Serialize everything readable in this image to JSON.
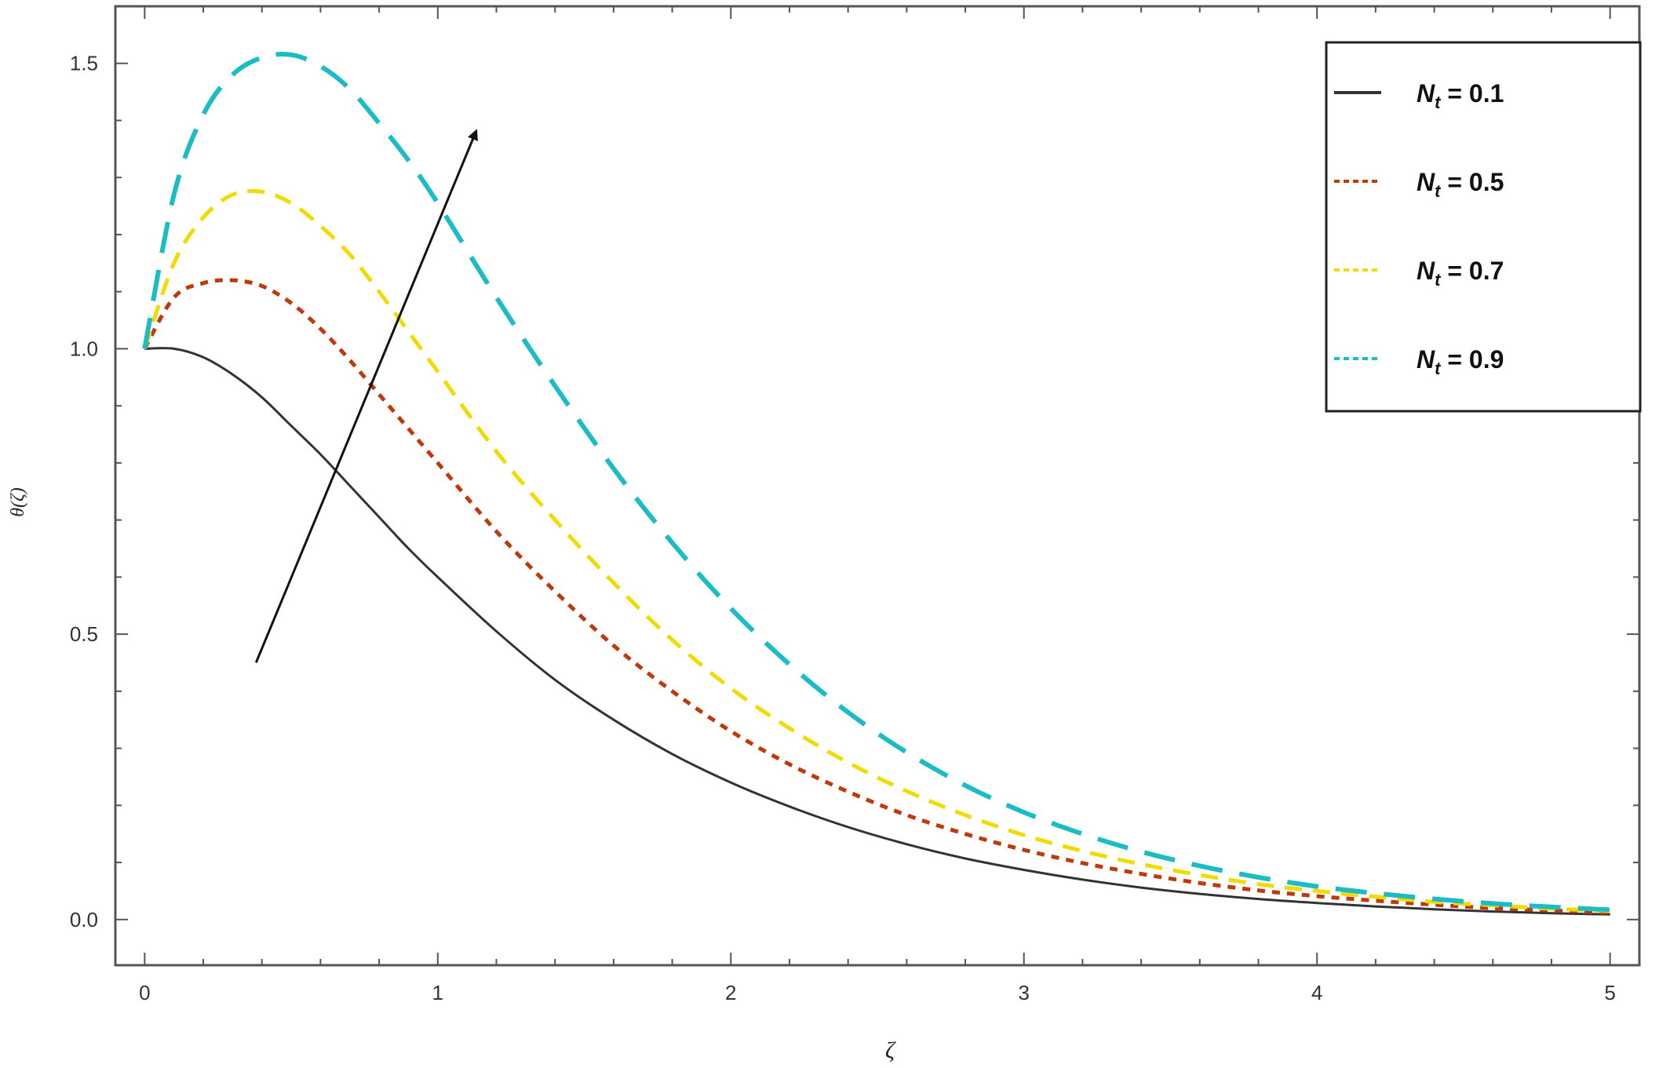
{
  "chart_data": {
    "type": "line",
    "xlabel": "ζ",
    "ylabel": "θ(ζ)",
    "xlim": [
      -0.1,
      5.1
    ],
    "ylim": [
      -0.08,
      1.6
    ],
    "x_ticks": [
      "0",
      "1",
      "2",
      "3",
      "4",
      "5"
    ],
    "x_tick_values": [
      0,
      1,
      2,
      3,
      4,
      5
    ],
    "y_ticks": [
      "0.0",
      "0.5",
      "1.0",
      "1.5"
    ],
    "y_tick_values": [
      0,
      0.5,
      1.0,
      1.5
    ],
    "legend_position": "top-right",
    "series": [
      {
        "name": "N_t = 0.1",
        "legend_var": "N",
        "legend_sub": "t",
        "legend_value": " = 0.1",
        "color": "#333333",
        "dash": "solid",
        "x": [
          0,
          0.1,
          0.2,
          0.3,
          0.4,
          0.5,
          0.6,
          0.7,
          0.8,
          0.9,
          1.0,
          1.2,
          1.4,
          1.6,
          1.8,
          2.0,
          2.2,
          2.4,
          2.6,
          2.8,
          3.0,
          3.2,
          3.4,
          3.6,
          3.8,
          4.0,
          4.2,
          4.4,
          4.6,
          4.8,
          5.0
        ],
        "y": [
          1.0,
          1.0,
          0.985,
          0.955,
          0.915,
          0.865,
          0.815,
          0.76,
          0.705,
          0.65,
          0.6,
          0.505,
          0.42,
          0.35,
          0.29,
          0.24,
          0.198,
          0.162,
          0.132,
          0.107,
          0.087,
          0.07,
          0.056,
          0.045,
          0.036,
          0.029,
          0.023,
          0.018,
          0.014,
          0.011,
          0.009
        ]
      },
      {
        "name": "N_t = 0.5",
        "legend_var": "N",
        "legend_sub": "t",
        "legend_value": " = 0.5",
        "color": "#c0390c",
        "dash": "short",
        "x": [
          0,
          0.1,
          0.2,
          0.3,
          0.4,
          0.5,
          0.6,
          0.7,
          0.8,
          0.9,
          1.0,
          1.2,
          1.4,
          1.6,
          1.8,
          2.0,
          2.2,
          2.4,
          2.6,
          2.8,
          3.0,
          3.2,
          3.4,
          3.6,
          3.8,
          4.0,
          4.2,
          4.4,
          4.6,
          4.8,
          5.0
        ],
        "y": [
          1.0,
          1.09,
          1.115,
          1.12,
          1.11,
          1.08,
          1.035,
          0.98,
          0.92,
          0.86,
          0.8,
          0.68,
          0.575,
          0.48,
          0.4,
          0.33,
          0.272,
          0.224,
          0.183,
          0.15,
          0.122,
          0.099,
          0.08,
          0.064,
          0.051,
          0.041,
          0.033,
          0.026,
          0.02,
          0.016,
          0.012
        ]
      },
      {
        "name": "N_t = 0.7",
        "legend_var": "N",
        "legend_sub": "t",
        "legend_value": " = 0.7",
        "color": "#f0dc00",
        "dash": "medium",
        "x": [
          0,
          0.1,
          0.2,
          0.3,
          0.4,
          0.5,
          0.6,
          0.7,
          0.8,
          0.9,
          1.0,
          1.2,
          1.4,
          1.6,
          1.8,
          2.0,
          2.2,
          2.4,
          2.6,
          2.8,
          3.0,
          3.2,
          3.4,
          3.6,
          3.8,
          4.0,
          4.2,
          4.4,
          4.6,
          4.8,
          5.0
        ],
        "y": [
          1.0,
          1.15,
          1.23,
          1.27,
          1.275,
          1.255,
          1.215,
          1.165,
          1.1,
          1.03,
          0.96,
          0.82,
          0.7,
          0.59,
          0.49,
          0.405,
          0.335,
          0.275,
          0.225,
          0.183,
          0.148,
          0.12,
          0.097,
          0.078,
          0.062,
          0.05,
          0.04,
          0.031,
          0.025,
          0.019,
          0.015
        ]
      },
      {
        "name": "N_t = 0.9",
        "legend_var": "N",
        "legend_sub": "t",
        "legend_value": " = 0.9",
        "color": "#1cbcc4",
        "dash": "long",
        "x": [
          0,
          0.1,
          0.2,
          0.3,
          0.4,
          0.5,
          0.6,
          0.7,
          0.8,
          0.9,
          1.0,
          1.2,
          1.4,
          1.6,
          1.8,
          2.0,
          2.2,
          2.4,
          2.6,
          2.8,
          3.0,
          3.2,
          3.4,
          3.6,
          3.8,
          4.0,
          4.2,
          4.4,
          4.6,
          4.8,
          5.0
        ],
        "y": [
          1.0,
          1.27,
          1.41,
          1.48,
          1.51,
          1.515,
          1.495,
          1.455,
          1.395,
          1.33,
          1.255,
          1.09,
          0.935,
          0.79,
          0.66,
          0.545,
          0.447,
          0.363,
          0.293,
          0.235,
          0.188,
          0.15,
          0.119,
          0.094,
          0.074,
          0.058,
          0.046,
          0.036,
          0.028,
          0.022,
          0.017
        ]
      }
    ],
    "annotation_arrow": {
      "from": [
        0.38,
        0.45
      ],
      "to": [
        1.13,
        1.38
      ],
      "color": "#111111"
    }
  }
}
